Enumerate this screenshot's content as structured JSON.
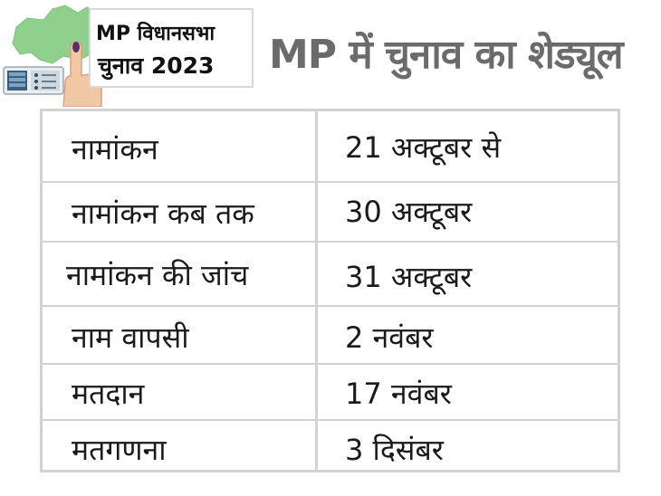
{
  "badge": {
    "line1": "MP विधानसभा",
    "line2": "चुनाव 2023"
  },
  "title": "MP में चुनाव का शेड्यूल",
  "schedule": [
    {
      "event": "नामांकन",
      "date": "21 अक्टूबर से"
    },
    {
      "event": "नामांकन कब तक",
      "date": "30 अक्टूबर"
    },
    {
      "event": "नामांकन की जांच",
      "date": "31 अक्टूबर"
    },
    {
      "event": "नाम वापसी",
      "date": "2 नवंबर"
    },
    {
      "event": "मतदान",
      "date": "17 नवंबर"
    },
    {
      "event": "मतगणना",
      "date": "3 दिसंबर"
    }
  ],
  "colors": {
    "map": "#8fd18c",
    "title": "#6b6b6b",
    "border": "#d2d2d2"
  },
  "icons": [
    "mp-map-icon",
    "voting-machine-icon",
    "inked-finger-hand-icon"
  ]
}
